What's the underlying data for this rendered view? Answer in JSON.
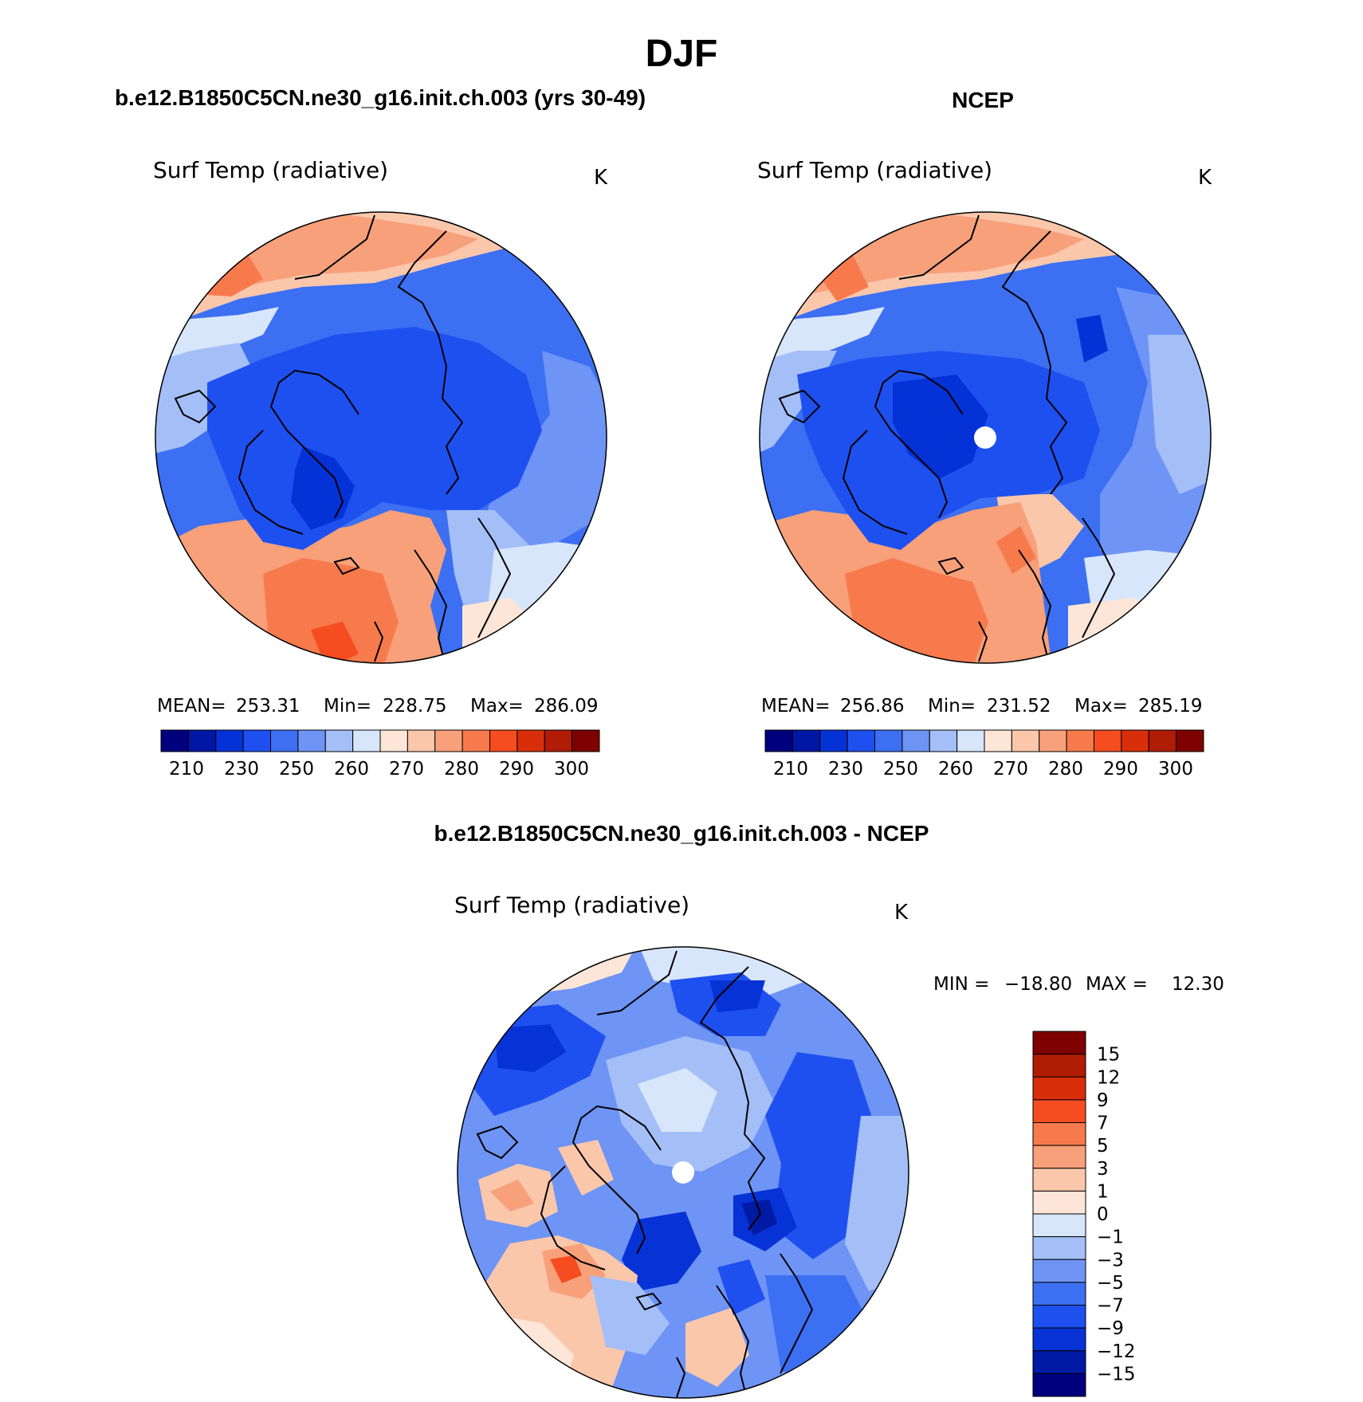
{
  "figure_title": "DJF",
  "colors": {
    "abs": [
      "#00007f",
      "#0017a6",
      "#0532d6",
      "#1e50f0",
      "#3c6ff2",
      "#6e94f5",
      "#a4bff8",
      "#d7e6fb",
      "#fde6d7",
      "#fbc7ab",
      "#f7a07a",
      "#f77a4d",
      "#f54d1f",
      "#d92e0a",
      "#b01c06",
      "#7f0000"
    ],
    "diff": [
      "#00007f",
      "#001aa6",
      "#0732d6",
      "#1e50f0",
      "#3c6ff2",
      "#6e94f5",
      "#a4bff8",
      "#d7e6fb",
      "#fde6d7",
      "#fbc7ab",
      "#f7a07a",
      "#f77a4d",
      "#f54d1f",
      "#d92e0a",
      "#b01c06",
      "#7f0000"
    ],
    "coast": "#000000",
    "missing": "#ffffff"
  },
  "chart_data": [
    {
      "type": "heatmap",
      "projection": "north-polar-stereographic",
      "panel_title": "b.e12.B1850C5CN.ne30_g16.init.ch.003 (yrs 30-49)",
      "title": "Surf Temp (radiative)",
      "units": "K",
      "stats": {
        "mean_label": "MEAN=",
        "mean": "253.31",
        "min_label": "Min=",
        "min": "228.75",
        "max_label": "Max=",
        "max": "286.09"
      },
      "colorbar": {
        "orientation": "horizontal",
        "levels": [
          210,
          220,
          230,
          240,
          250,
          255,
          260,
          265,
          270,
          275,
          280,
          285,
          290,
          295,
          300
        ],
        "tick_labels": [
          "210",
          "230",
          "250",
          "260",
          "270",
          "280",
          "290",
          "300"
        ]
      }
    },
    {
      "type": "heatmap",
      "projection": "north-polar-stereographic",
      "panel_title": "NCEP",
      "title": "Surf Temp (radiative)",
      "units": "K",
      "stats": {
        "mean_label": "MEAN=",
        "mean": "256.86",
        "min_label": "Min=",
        "min": "231.52",
        "max_label": "Max=",
        "max": "285.19"
      },
      "colorbar": {
        "orientation": "horizontal",
        "levels": [
          210,
          220,
          230,
          240,
          250,
          255,
          260,
          265,
          270,
          275,
          280,
          285,
          290,
          295,
          300
        ],
        "tick_labels": [
          "210",
          "230",
          "250",
          "260",
          "270",
          "280",
          "290",
          "300"
        ]
      }
    },
    {
      "type": "heatmap",
      "projection": "north-polar-stereographic",
      "panel_title": "b.e12.B1850C5CN.ne30_g16.init.ch.003 - NCEP",
      "title": "Surf Temp (radiative)",
      "units": "K",
      "stats": {
        "min_label": "MIN =",
        "min": "−18.80",
        "max_label": "MAX =",
        "max": "12.30"
      },
      "colorbar": {
        "orientation": "vertical",
        "levels": [
          -15,
          -12,
          -9,
          -7,
          -5,
          -3,
          -1,
          0,
          1,
          3,
          5,
          7,
          9,
          12,
          15
        ],
        "tick_labels": [
          "15",
          "12",
          "9",
          "7",
          "5",
          "3",
          "1",
          "0",
          "−1",
          "−3",
          "−5",
          "−7",
          "−9",
          "−12",
          "−15"
        ]
      }
    }
  ]
}
